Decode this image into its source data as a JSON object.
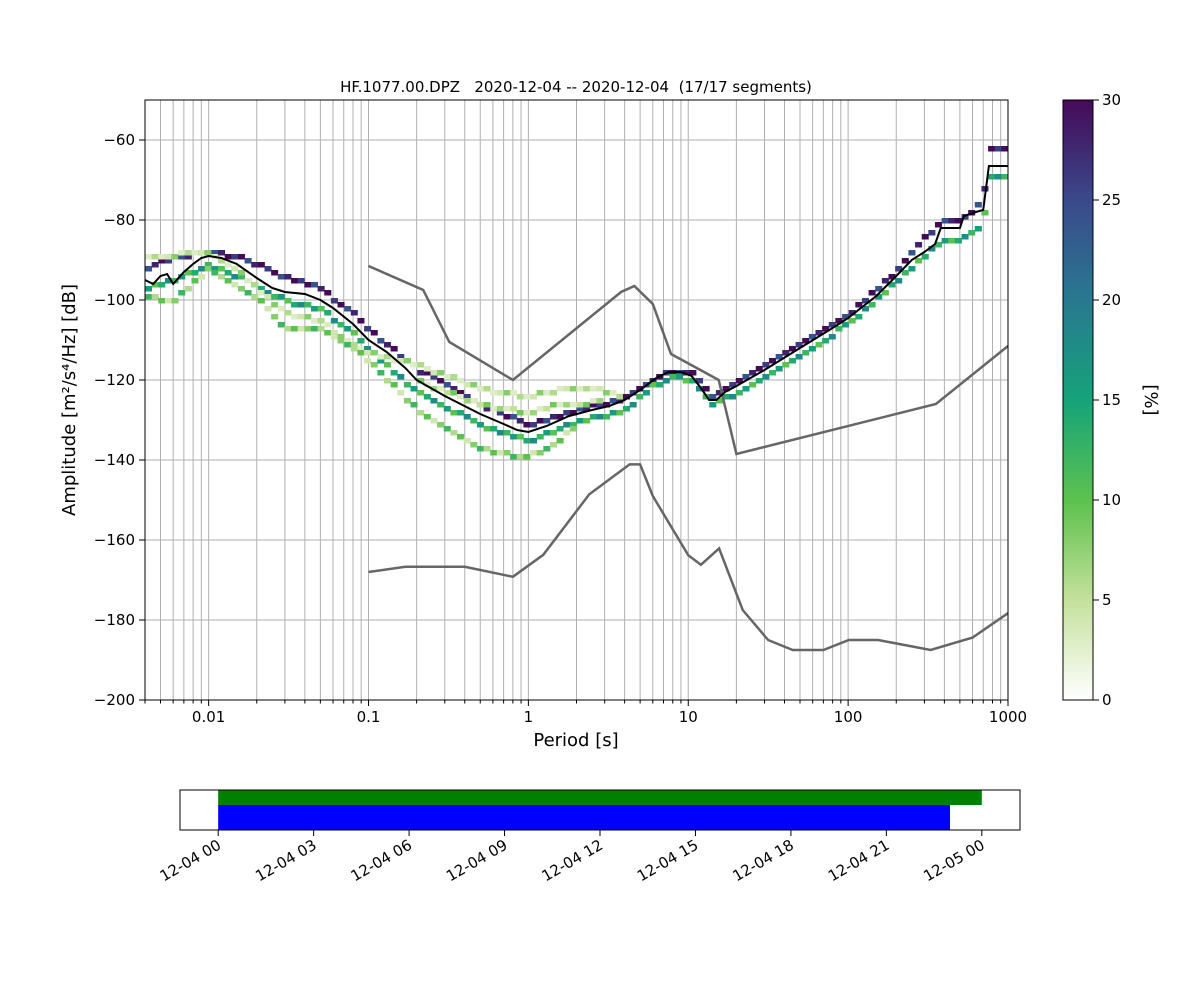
{
  "chart_data": [
    {
      "type": "heatmap",
      "title": "HF.1077.00.DPZ   2020-12-04 -- 2020-12-04  (17/17 segments)",
      "xlabel": "Period [s]",
      "ylabel": "Amplitude [m²/s⁴/Hz] [dB]",
      "xscale": "log",
      "xlim": [
        0.004,
        1000
      ],
      "ylim": [
        -200,
        -50
      ],
      "grid": true,
      "x_ticks": [
        {
          "value": 0.01,
          "label": "0.01"
        },
        {
          "value": 0.1,
          "label": "0.1"
        },
        {
          "value": 1,
          "label": "1"
        },
        {
          "value": 10,
          "label": "10"
        },
        {
          "value": 100,
          "label": "100"
        },
        {
          "value": 1000,
          "label": "1000"
        }
      ],
      "y_ticks": [
        {
          "value": -60,
          "label": "−60"
        },
        {
          "value": -80,
          "label": "−80"
        },
        {
          "value": -100,
          "label": "−100"
        },
        {
          "value": -120,
          "label": "−120"
        },
        {
          "value": -140,
          "label": "−140"
        },
        {
          "value": -160,
          "label": "−160"
        },
        {
          "value": -180,
          "label": "−180"
        },
        {
          "value": -200,
          "label": "−200"
        }
      ],
      "colorbar": {
        "label": "[%]",
        "min": 0,
        "max": 30,
        "colormap": "viridis-like (white → light green → green → teal → blue → purple)",
        "ticks": [
          {
            "value": 0,
            "label": "0"
          },
          {
            "value": 5,
            "label": "5"
          },
          {
            "value": 10,
            "label": "10"
          },
          {
            "value": 15,
            "label": "15"
          },
          {
            "value": 20,
            "label": "20"
          },
          {
            "value": 25,
            "label": "25"
          },
          {
            "value": 30,
            "label": "30"
          }
        ]
      },
      "mean_curve": {
        "color": "#000000",
        "points": [
          [
            0.004,
            -95
          ],
          [
            0.0045,
            -96
          ],
          [
            0.005,
            -94
          ],
          [
            0.0055,
            -93.5
          ],
          [
            0.006,
            -96
          ],
          [
            0.007,
            -93
          ],
          [
            0.008,
            -91
          ],
          [
            0.009,
            -89.5
          ],
          [
            0.01,
            -89
          ],
          [
            0.012,
            -89.5
          ],
          [
            0.015,
            -91
          ],
          [
            0.02,
            -94.5
          ],
          [
            0.025,
            -97
          ],
          [
            0.03,
            -98
          ],
          [
            0.04,
            -98.5
          ],
          [
            0.05,
            -100
          ],
          [
            0.06,
            -102
          ],
          [
            0.08,
            -106
          ],
          [
            0.1,
            -110
          ],
          [
            0.13,
            -113
          ],
          [
            0.17,
            -117
          ],
          [
            0.2,
            -120
          ],
          [
            0.3,
            -124
          ],
          [
            0.5,
            -128.5
          ],
          [
            0.7,
            -131
          ],
          [
            0.85,
            -132.5
          ],
          [
            1,
            -133
          ],
          [
            1.3,
            -131.5
          ],
          [
            1.8,
            -129
          ],
          [
            2.5,
            -127.5
          ],
          [
            3.2,
            -126.5
          ],
          [
            4,
            -125
          ],
          [
            5,
            -122.5
          ],
          [
            6.3,
            -119.5
          ],
          [
            7.5,
            -118
          ],
          [
            9,
            -118
          ],
          [
            10.5,
            -119
          ],
          [
            12,
            -122
          ],
          [
            13.5,
            -125
          ],
          [
            15,
            -125
          ],
          [
            17,
            -123
          ],
          [
            20,
            -121.5
          ],
          [
            30,
            -117.5
          ],
          [
            50,
            -112
          ],
          [
            80,
            -107
          ],
          [
            100,
            -104.5
          ],
          [
            150,
            -99
          ],
          [
            200,
            -94
          ],
          [
            250,
            -90
          ],
          [
            300,
            -88
          ],
          [
            350,
            -86
          ],
          [
            380,
            -82
          ],
          [
            500,
            -82
          ],
          [
            530,
            -79
          ],
          [
            630,
            -78
          ],
          [
            700,
            -77.5
          ],
          [
            760,
            -66.5
          ],
          [
            1000,
            -66.5
          ]
        ]
      },
      "noise_models": [
        {
          "name_shown": "",
          "color": "#666666",
          "points": [
            [
              0.1,
              -91.5
            ],
            [
              0.22,
              -97.5
            ],
            [
              0.32,
              -110.5
            ],
            [
              0.8,
              -120
            ],
            [
              3.8,
              -98
            ],
            [
              4.6,
              -96.5
            ],
            [
              6,
              -101
            ],
            [
              7.8,
              -113.5
            ],
            [
              15.5,
              -120
            ],
            [
              20,
              -138.5
            ],
            [
              354,
              -126
            ],
            [
              1000,
              -111.5
            ]
          ]
        },
        {
          "name_shown": "",
          "color": "#666666",
          "points": [
            [
              0.1,
              -168
            ],
            [
              0.17,
              -166.7
            ],
            [
              0.4,
              -166.7
            ],
            [
              0.8,
              -169.2
            ],
            [
              1.24,
              -163.7
            ],
            [
              2.4,
              -148.6
            ],
            [
              4.3,
              -141.1
            ],
            [
              5,
              -141.1
            ],
            [
              6,
              -149
            ],
            [
              10,
              -163.8
            ],
            [
              12,
              -166.2
            ],
            [
              15.6,
              -162.1
            ],
            [
              21.9,
              -177.5
            ],
            [
              31.6,
              -185
            ],
            [
              45,
              -187.5
            ],
            [
              70,
              -187.5
            ],
            [
              101,
              -185
            ],
            [
              154,
              -185
            ],
            [
              328,
              -187.5
            ],
            [
              600,
              -184.4
            ],
            [
              1000,
              -178.3
            ]
          ]
        }
      ],
      "histogram_bands": [
        {
          "y": [
            [
              0.004,
              -92
            ],
            [
              0.005,
              -90
            ],
            [
              0.007,
              -89
            ],
            [
              0.01,
              -87.5
            ],
            [
              0.015,
              -89
            ],
            [
              0.02,
              -91
            ],
            [
              0.03,
              -94
            ],
            [
              0.05,
              -97
            ],
            [
              0.08,
              -103
            ],
            [
              0.1,
              -107
            ],
            [
              0.2,
              -117
            ],
            [
              0.5,
              -126
            ],
            [
              1,
              -131
            ],
            [
              2,
              -127.5
            ],
            [
              4,
              -124.5
            ],
            [
              6,
              -120
            ],
            [
              8,
              -117.5
            ],
            [
              11,
              -118
            ],
            [
              14,
              -124
            ],
            [
              20,
              -120.5
            ],
            [
              50,
              -110.5
            ],
            [
              100,
              -103.5
            ],
            [
              200,
              -92.5
            ],
            [
              380,
              -80
            ],
            [
              500,
              -80
            ],
            [
              700,
              -75
            ],
            [
              760,
              -62
            ],
            [
              1000,
              -62
            ]
          ],
          "pct": 28
        },
        {
          "y": [
            [
              0.004,
              -97
            ],
            [
              0.006,
              -95
            ],
            [
              0.01,
              -91
            ],
            [
              0.02,
              -96
            ],
            [
              0.03,
              -100
            ],
            [
              0.05,
              -102
            ],
            [
              0.08,
              -108
            ],
            [
              0.1,
              -112
            ],
            [
              0.2,
              -123
            ],
            [
              0.5,
              -131
            ],
            [
              1,
              -135
            ],
            [
              2,
              -130.5
            ],
            [
              4,
              -127.5
            ],
            [
              6,
              -121.5
            ],
            [
              8,
              -119
            ],
            [
              11,
              -120
            ],
            [
              14,
              -126.5
            ],
            [
              20,
              -123
            ],
            [
              50,
              -113.5
            ],
            [
              100,
              -106
            ],
            [
              200,
              -95.5
            ],
            [
              380,
              -85
            ],
            [
              500,
              -85
            ],
            [
              700,
              -81
            ],
            [
              760,
              -69
            ],
            [
              1000,
              -69
            ]
          ],
          "pct": 14
        },
        {
          "y": [
            [
              0.004,
              -89
            ],
            [
              0.01,
              -88
            ],
            [
              0.015,
              -92
            ],
            [
              0.02,
              -97
            ],
            [
              0.03,
              -103
            ],
            [
              0.05,
              -105
            ],
            [
              0.08,
              -111
            ],
            [
              0.1,
              -113
            ],
            [
              0.2,
              -116
            ],
            [
              0.5,
              -122
            ],
            [
              1,
              -124
            ],
            [
              1.5,
              -122.5
            ],
            [
              2,
              -122.5
            ],
            [
              3,
              -122.5
            ],
            [
              4,
              -124
            ]
          ],
          "pct": 4
        },
        {
          "y": [
            [
              0.004,
              -99
            ],
            [
              0.006,
              -100
            ],
            [
              0.01,
              -92
            ],
            [
              0.02,
              -99
            ],
            [
              0.03,
              -107
            ],
            [
              0.05,
              -107
            ],
            [
              0.08,
              -112
            ],
            [
              0.1,
              -115
            ],
            [
              0.2,
              -127
            ],
            [
              0.4,
              -135
            ],
            [
              0.6,
              -138
            ],
            [
              1,
              -139
            ],
            [
              1.5,
              -136
            ],
            [
              2,
              -131
            ]
          ],
          "pct": 8
        },
        {
          "y": [
            [
              0.2,
              -120
            ],
            [
              0.5,
              -126
            ],
            [
              1,
              -128
            ],
            [
              1.5,
              -126
            ],
            [
              2,
              -126
            ],
            [
              3,
              -125
            ]
          ],
          "pct": 5
        }
      ]
    },
    {
      "type": "timeline",
      "x_ticks": [
        "12-04 00",
        "12-04 03",
        "12-04 06",
        "12-04 09",
        "12-04 12",
        "12-04 15",
        "12-04 18",
        "12-04 21",
        "12-05 00"
      ],
      "xlim_hours": [
        -1.2,
        25.2
      ],
      "bars": [
        {
          "color": "#008000",
          "start_hour": 0,
          "end_hour": 24
        },
        {
          "color": "#0000ff",
          "start_hour": 0,
          "end_hour": 23
        }
      ]
    }
  ]
}
